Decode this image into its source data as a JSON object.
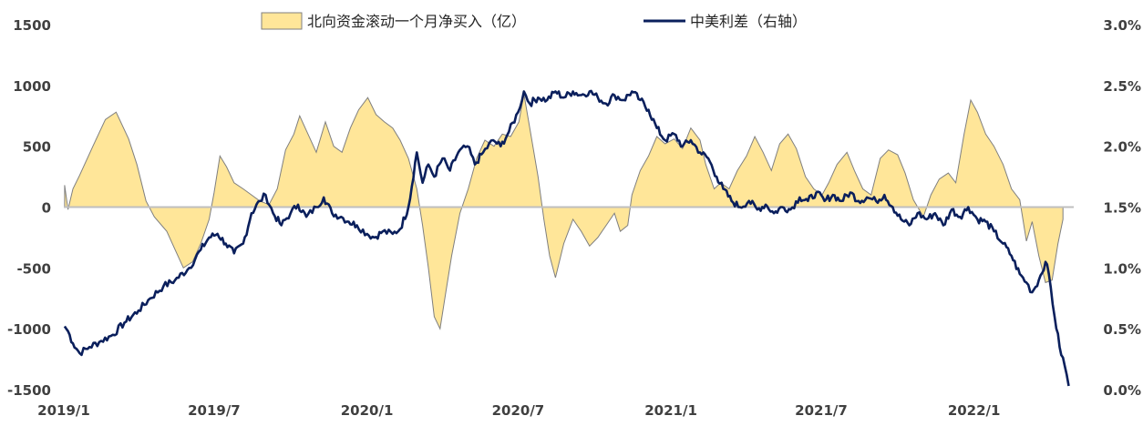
{
  "chart_data": {
    "type": "area",
    "title": "",
    "xlabel": "",
    "ylabel": "",
    "ylim": [
      -1500,
      1500
    ],
    "y2lim": [
      0.0,
      3.0
    ],
    "left_ticks": [
      "1500",
      "1000",
      "500",
      "0",
      "-500",
      "-1000",
      "-1500"
    ],
    "right_ticks": [
      "3.0%",
      "2.5%",
      "2.0%",
      "1.5%",
      "1.0%",
      "0.5%",
      "0.0%"
    ],
    "x_ticks": [
      "2019/1",
      "2019/7",
      "2020/1",
      "2020/7",
      "2021/1",
      "2021/7",
      "2022/1"
    ],
    "x_range": [
      "2019-01",
      "2022-05"
    ],
    "grid": false,
    "legend_position": "top",
    "series": [
      {
        "name": "北向资金滚动一个月净买入（亿）",
        "type": "area",
        "axis": "left",
        "color": "#FFE699",
        "edge_color": "#7F7F7F",
        "points": [
          [
            "2019-01-02",
            180
          ],
          [
            "2019-01-06",
            -20
          ],
          [
            "2019-01-12",
            150
          ],
          [
            "2019-01-20",
            260
          ],
          [
            "2019-02-05",
            500
          ],
          [
            "2019-02-20",
            720
          ],
          [
            "2019-03-05",
            780
          ],
          [
            "2019-03-20",
            560
          ],
          [
            "2019-03-30",
            350
          ],
          [
            "2019-04-10",
            50
          ],
          [
            "2019-04-20",
            -80
          ],
          [
            "2019-05-05",
            -200
          ],
          [
            "2019-05-15",
            -350
          ],
          [
            "2019-05-25",
            -500
          ],
          [
            "2019-06-05",
            -450
          ],
          [
            "2019-06-15",
            -300
          ],
          [
            "2019-06-25",
            -100
          ],
          [
            "2019-07-01",
            120
          ],
          [
            "2019-07-08",
            420
          ],
          [
            "2019-07-16",
            330
          ],
          [
            "2019-07-25",
            200
          ],
          [
            "2019-08-05",
            150
          ],
          [
            "2019-08-15",
            100
          ],
          [
            "2019-08-25",
            50
          ],
          [
            "2019-09-05",
            20
          ],
          [
            "2019-09-15",
            150
          ],
          [
            "2019-09-25",
            470
          ],
          [
            "2019-10-05",
            600
          ],
          [
            "2019-10-12",
            750
          ],
          [
            "2019-10-22",
            600
          ],
          [
            "2019-11-01",
            450
          ],
          [
            "2019-11-12",
            700
          ],
          [
            "2019-11-22",
            500
          ],
          [
            "2019-12-02",
            450
          ],
          [
            "2019-12-12",
            650
          ],
          [
            "2019-12-22",
            800
          ],
          [
            "2020-01-02",
            900
          ],
          [
            "2020-01-12",
            760
          ],
          [
            "2020-01-22",
            700
          ],
          [
            "2020-02-01",
            650
          ],
          [
            "2020-02-10",
            550
          ],
          [
            "2020-02-20",
            400
          ],
          [
            "2020-03-01",
            150
          ],
          [
            "2020-03-08",
            -150
          ],
          [
            "2020-03-15",
            -500
          ],
          [
            "2020-03-22",
            -900
          ],
          [
            "2020-03-29",
            -1000
          ],
          [
            "2020-04-05",
            -700
          ],
          [
            "2020-04-12",
            -400
          ],
          [
            "2020-04-22",
            -50
          ],
          [
            "2020-05-02",
            150
          ],
          [
            "2020-05-12",
            400
          ],
          [
            "2020-05-22",
            550
          ],
          [
            "2020-06-02",
            500
          ],
          [
            "2020-06-12",
            600
          ],
          [
            "2020-06-22",
            580
          ],
          [
            "2020-07-02",
            700
          ],
          [
            "2020-07-08",
            930
          ],
          [
            "2020-07-15",
            650
          ],
          [
            "2020-07-25",
            250
          ],
          [
            "2020-08-01",
            -100
          ],
          [
            "2020-08-08",
            -400
          ],
          [
            "2020-08-15",
            -580
          ],
          [
            "2020-08-25",
            -300
          ],
          [
            "2020-09-05",
            -100
          ],
          [
            "2020-09-15",
            -200
          ],
          [
            "2020-09-25",
            -320
          ],
          [
            "2020-10-05",
            -250
          ],
          [
            "2020-10-15",
            -150
          ],
          [
            "2020-10-25",
            -50
          ],
          [
            "2020-11-01",
            -200
          ],
          [
            "2020-11-10",
            -150
          ],
          [
            "2020-11-15",
            100
          ],
          [
            "2020-11-25",
            300
          ],
          [
            "2020-12-05",
            420
          ],
          [
            "2020-12-15",
            580
          ],
          [
            "2020-12-25",
            520
          ],
          [
            "2021-01-05",
            560
          ],
          [
            "2021-01-15",
            480
          ],
          [
            "2021-01-25",
            650
          ],
          [
            "2021-02-05",
            550
          ],
          [
            "2021-02-12",
            350
          ],
          [
            "2021-02-22",
            150
          ],
          [
            "2021-03-02",
            200
          ],
          [
            "2021-03-12",
            150
          ],
          [
            "2021-03-22",
            300
          ],
          [
            "2021-04-02",
            420
          ],
          [
            "2021-04-12",
            580
          ],
          [
            "2021-04-22",
            450
          ],
          [
            "2021-05-02",
            300
          ],
          [
            "2021-05-12",
            520
          ],
          [
            "2021-05-22",
            600
          ],
          [
            "2021-06-01",
            480
          ],
          [
            "2021-06-12",
            250
          ],
          [
            "2021-06-22",
            150
          ],
          [
            "2021-07-02",
            100
          ],
          [
            "2021-07-10",
            200
          ],
          [
            "2021-07-20",
            350
          ],
          [
            "2021-08-01",
            450
          ],
          [
            "2021-08-10",
            300
          ],
          [
            "2021-08-20",
            150
          ],
          [
            "2021-08-30",
            100
          ],
          [
            "2021-09-10",
            400
          ],
          [
            "2021-09-20",
            470
          ],
          [
            "2021-10-01",
            430
          ],
          [
            "2021-10-10",
            280
          ],
          [
            "2021-10-20",
            60
          ],
          [
            "2021-11-01",
            -80
          ],
          [
            "2021-11-10",
            100
          ],
          [
            "2021-11-20",
            230
          ],
          [
            "2021-12-01",
            280
          ],
          [
            "2021-12-10",
            200
          ],
          [
            "2021-12-20",
            600
          ],
          [
            "2021-12-28",
            880
          ],
          [
            "2022-01-05",
            780
          ],
          [
            "2022-01-15",
            600
          ],
          [
            "2022-01-25",
            500
          ],
          [
            "2022-02-05",
            350
          ],
          [
            "2022-02-15",
            150
          ],
          [
            "2022-02-25",
            60
          ],
          [
            "2022-03-05",
            -280
          ],
          [
            "2022-03-12",
            -120
          ],
          [
            "2022-03-20",
            -400
          ],
          [
            "2022-03-28",
            -620
          ],
          [
            "2022-04-05",
            -600
          ],
          [
            "2022-04-12",
            -300
          ],
          [
            "2022-04-18",
            -100
          ]
        ]
      },
      {
        "name": "中美利差（右轴）",
        "type": "line",
        "axis": "right",
        "color": "#0A1F5C",
        "points": [
          [
            "2019-01-02",
            0.52
          ],
          [
            "2019-01-06",
            0.48
          ],
          [
            "2019-01-12",
            0.38
          ],
          [
            "2019-01-20",
            0.3
          ],
          [
            "2019-02-01",
            0.35
          ],
          [
            "2019-02-15",
            0.4
          ],
          [
            "2019-03-01",
            0.45
          ],
          [
            "2019-03-15",
            0.55
          ],
          [
            "2019-04-01",
            0.65
          ],
          [
            "2019-04-15",
            0.75
          ],
          [
            "2019-05-01",
            0.85
          ],
          [
            "2019-05-15",
            0.9
          ],
          [
            "2019-06-01",
            1.0
          ],
          [
            "2019-06-15",
            1.15
          ],
          [
            "2019-06-25",
            1.25
          ],
          [
            "2019-07-05",
            1.28
          ],
          [
            "2019-07-15",
            1.2
          ],
          [
            "2019-07-25",
            1.12
          ],
          [
            "2019-08-05",
            1.2
          ],
          [
            "2019-08-15",
            1.45
          ],
          [
            "2019-08-25",
            1.55
          ],
          [
            "2019-09-01",
            1.6
          ],
          [
            "2019-09-10",
            1.45
          ],
          [
            "2019-09-20",
            1.35
          ],
          [
            "2019-10-01",
            1.45
          ],
          [
            "2019-10-10",
            1.52
          ],
          [
            "2019-10-20",
            1.42
          ],
          [
            "2019-11-01",
            1.5
          ],
          [
            "2019-11-10",
            1.58
          ],
          [
            "2019-11-20",
            1.45
          ],
          [
            "2019-12-01",
            1.42
          ],
          [
            "2019-12-10",
            1.38
          ],
          [
            "2019-12-20",
            1.35
          ],
          [
            "2020-01-01",
            1.28
          ],
          [
            "2020-01-10",
            1.25
          ],
          [
            "2020-01-20",
            1.3
          ],
          [
            "2020-02-01",
            1.28
          ],
          [
            "2020-02-10",
            1.32
          ],
          [
            "2020-02-20",
            1.5
          ],
          [
            "2020-03-01",
            1.95
          ],
          [
            "2020-03-08",
            1.7
          ],
          [
            "2020-03-15",
            1.85
          ],
          [
            "2020-03-22",
            1.75
          ],
          [
            "2020-04-01",
            1.9
          ],
          [
            "2020-04-10",
            1.8
          ],
          [
            "2020-04-20",
            1.95
          ],
          [
            "2020-05-01",
            2.0
          ],
          [
            "2020-05-10",
            1.85
          ],
          [
            "2020-05-20",
            1.95
          ],
          [
            "2020-06-01",
            2.05
          ],
          [
            "2020-06-10",
            2.0
          ],
          [
            "2020-06-20",
            2.12
          ],
          [
            "2020-07-01",
            2.28
          ],
          [
            "2020-07-08",
            2.45
          ],
          [
            "2020-07-15",
            2.35
          ],
          [
            "2020-07-25",
            2.4
          ],
          [
            "2020-08-05",
            2.38
          ],
          [
            "2020-08-15",
            2.45
          ],
          [
            "2020-08-25",
            2.4
          ],
          [
            "2020-09-05",
            2.45
          ],
          [
            "2020-09-15",
            2.42
          ],
          [
            "2020-09-25",
            2.45
          ],
          [
            "2020-10-05",
            2.4
          ],
          [
            "2020-10-15",
            2.35
          ],
          [
            "2020-10-25",
            2.42
          ],
          [
            "2020-11-05",
            2.38
          ],
          [
            "2020-11-15",
            2.45
          ],
          [
            "2020-11-25",
            2.38
          ],
          [
            "2020-12-05",
            2.3
          ],
          [
            "2020-12-15",
            2.15
          ],
          [
            "2020-12-25",
            2.05
          ],
          [
            "2021-01-05",
            2.1
          ],
          [
            "2021-01-15",
            2.0
          ],
          [
            "2021-01-25",
            2.05
          ],
          [
            "2021-02-05",
            1.95
          ],
          [
            "2021-02-15",
            1.9
          ],
          [
            "2021-02-25",
            1.75
          ],
          [
            "2021-03-05",
            1.65
          ],
          [
            "2021-03-15",
            1.55
          ],
          [
            "2021-03-25",
            1.5
          ],
          [
            "2021-04-05",
            1.55
          ],
          [
            "2021-04-15",
            1.48
          ],
          [
            "2021-04-25",
            1.52
          ],
          [
            "2021-05-05",
            1.45
          ],
          [
            "2021-05-15",
            1.5
          ],
          [
            "2021-05-25",
            1.48
          ],
          [
            "2021-06-05",
            1.58
          ],
          [
            "2021-06-15",
            1.55
          ],
          [
            "2021-06-25",
            1.62
          ],
          [
            "2021-07-05",
            1.55
          ],
          [
            "2021-07-15",
            1.6
          ],
          [
            "2021-07-25",
            1.55
          ],
          [
            "2021-08-05",
            1.62
          ],
          [
            "2021-08-15",
            1.55
          ],
          [
            "2021-08-25",
            1.58
          ],
          [
            "2021-09-05",
            1.55
          ],
          [
            "2021-09-15",
            1.6
          ],
          [
            "2021-09-25",
            1.5
          ],
          [
            "2021-10-05",
            1.4
          ],
          [
            "2021-10-15",
            1.35
          ],
          [
            "2021-10-25",
            1.45
          ],
          [
            "2021-11-05",
            1.4
          ],
          [
            "2021-11-15",
            1.45
          ],
          [
            "2021-11-25",
            1.35
          ],
          [
            "2021-12-05",
            1.48
          ],
          [
            "2021-12-15",
            1.42
          ],
          [
            "2021-12-25",
            1.5
          ],
          [
            "2022-01-05",
            1.4
          ],
          [
            "2022-01-15",
            1.38
          ],
          [
            "2022-01-25",
            1.3
          ],
          [
            "2022-02-05",
            1.2
          ],
          [
            "2022-02-15",
            1.1
          ],
          [
            "2022-02-25",
            0.95
          ],
          [
            "2022-03-05",
            0.88
          ],
          [
            "2022-03-12",
            0.8
          ],
          [
            "2022-03-20",
            0.9
          ],
          [
            "2022-03-28",
            1.05
          ],
          [
            "2022-04-01",
            0.95
          ],
          [
            "2022-04-08",
            0.6
          ],
          [
            "2022-04-14",
            0.35
          ],
          [
            "2022-04-20",
            0.2
          ],
          [
            "2022-04-25",
            0.03
          ]
        ]
      }
    ]
  },
  "legend": {
    "items": [
      {
        "label": "北向资金滚动一个月净买入（亿）",
        "color": "#FFE699",
        "edge": "#7F7F7F"
      },
      {
        "label": "中美利差（右轴）",
        "color": "#0A1F5C"
      }
    ]
  }
}
